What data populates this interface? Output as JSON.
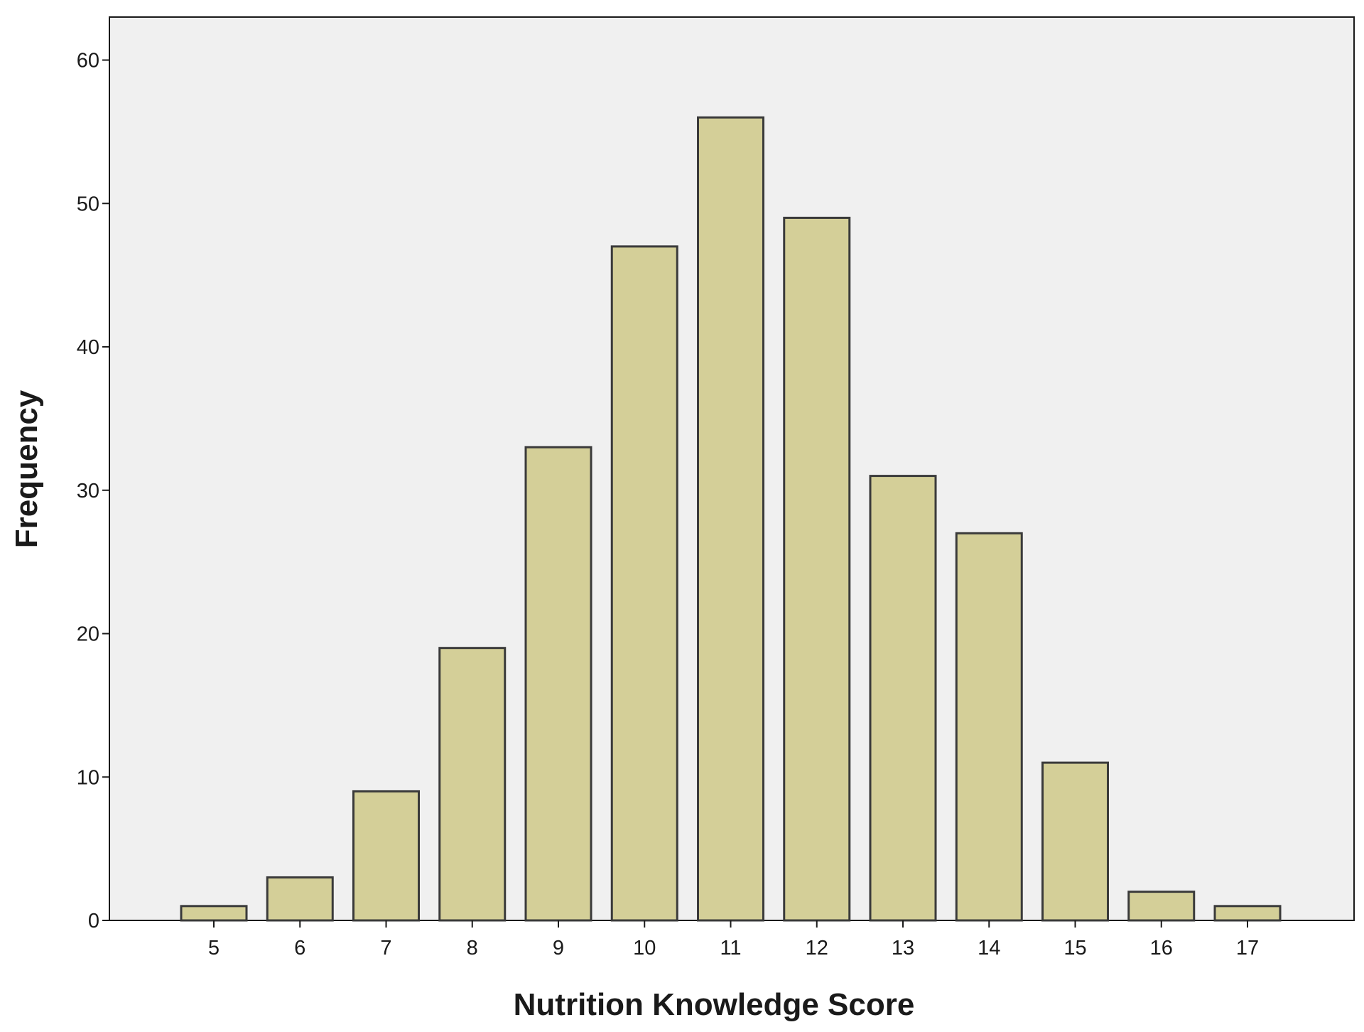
{
  "chart_data": {
    "type": "bar",
    "title": "",
    "xlabel": "Nutrition Knowledge Score",
    "ylabel": "Frequency",
    "categories": [
      "5",
      "6",
      "7",
      "8",
      "9",
      "10",
      "11",
      "12",
      "13",
      "14",
      "15",
      "16",
      "17"
    ],
    "values": [
      1,
      3,
      9,
      19,
      33,
      47,
      56,
      49,
      31,
      27,
      11,
      2,
      1
    ],
    "ylim": [
      0,
      63
    ],
    "yticks": [
      "0",
      "10",
      "20",
      "30",
      "40",
      "50",
      "60"
    ],
    "grid": false,
    "legend": "none",
    "colors": {
      "bar_fill": "#d4cf98",
      "bar_stroke": "#3a3a3a",
      "plot_background": "#f0f0f0",
      "axis": "#1a1a1a"
    }
  }
}
